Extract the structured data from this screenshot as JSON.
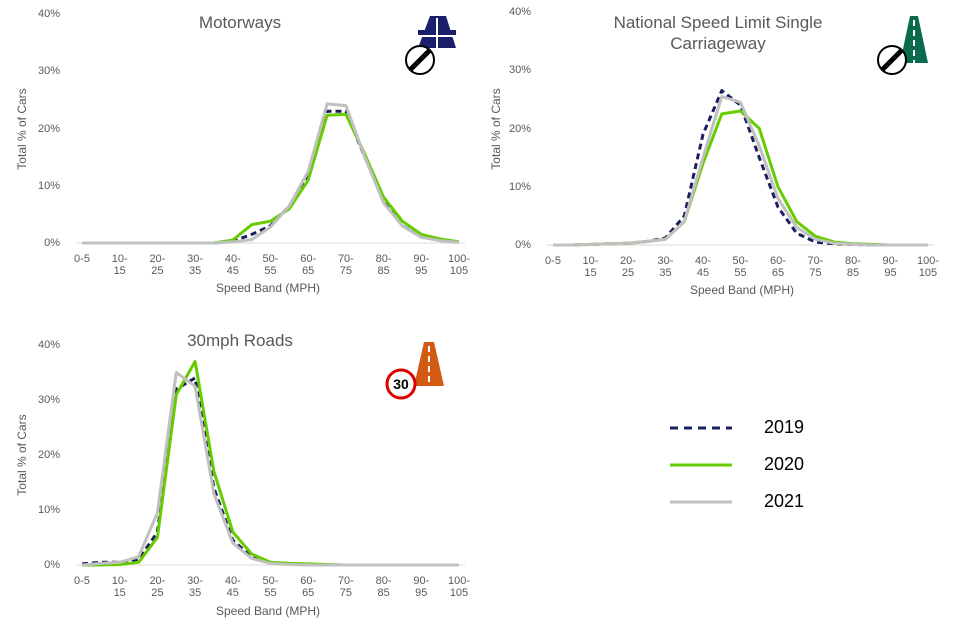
{
  "chart_data": [
    {
      "type": "line",
      "title": "Motorways",
      "y_label": "Total % of Cars",
      "x_label": "Speed Band (MPH)",
      "categories": [
        "0-5",
        null,
        "10-15",
        null,
        "20-25",
        null,
        "30-35",
        null,
        "40-45",
        null,
        "50-55",
        null,
        "60-65",
        null,
        "70-75",
        null,
        "80-85",
        null,
        "90-95",
        null,
        "100-105"
      ],
      "ylim": [
        0,
        40
      ],
      "yticks": [
        {
          "value": 0,
          "label": "0%"
        },
        {
          "value": 10,
          "label": "10%"
        },
        {
          "value": 20,
          "label": "20%"
        },
        {
          "value": 30,
          "label": "30%"
        },
        {
          "value": 40,
          "label": "40%"
        }
      ],
      "series": [
        {
          "name": "2019",
          "color": "#1a1f5e",
          "style": "dashed",
          "values": [
            0,
            0,
            0,
            0,
            0,
            0,
            0,
            0,
            0.3,
            1.5,
            3,
            6.5,
            12,
            23,
            23,
            15,
            7.5,
            3,
            1.2,
            0.5,
            0.1
          ]
        },
        {
          "name": "2020",
          "color": "#66cc00",
          "style": "solid",
          "values": [
            0,
            0,
            0,
            0,
            0,
            0,
            0,
            0,
            0.5,
            3.2,
            3.8,
            6,
            11,
            22.3,
            22.5,
            15.5,
            8,
            3.8,
            1.5,
            0.7,
            0.2
          ]
        },
        {
          "name": "2021",
          "color": "#c0c0c0",
          "style": "solid",
          "values": [
            0,
            0,
            0,
            0,
            0,
            0,
            0,
            0,
            0.2,
            0.6,
            2.8,
            6.5,
            12.5,
            24.3,
            24,
            15,
            7,
            3,
            1,
            0.4,
            0.1
          ]
        }
      ]
    },
    {
      "type": "line",
      "title": "National Speed Limit Single Carriageway",
      "y_label": "Total % of Cars",
      "x_label": "Speed Band (MPH)",
      "categories": [
        "0-5",
        null,
        "10-15",
        null,
        "20-25",
        null,
        "30-35",
        null,
        "40-45",
        null,
        "50-55",
        null,
        "60-65",
        null,
        "70-75",
        null,
        "80-85",
        null,
        "90-95",
        null,
        "100-105"
      ],
      "ylim": [
        0,
        40
      ],
      "yticks": [
        {
          "value": 0,
          "label": "0%"
        },
        {
          "value": 10,
          "label": "10%"
        },
        {
          "value": 20,
          "label": "20%"
        },
        {
          "value": 30,
          "label": "30%"
        },
        {
          "value": 40,
          "label": "40%"
        }
      ],
      "series": [
        {
          "name": "2019",
          "color": "#1a1f5e",
          "style": "dashed",
          "values": [
            0,
            0,
            0.1,
            0.2,
            0.3,
            0.6,
            1.2,
            5,
            19,
            26.5,
            24,
            15,
            6.5,
            2,
            0.5,
            0.2,
            0.1,
            0,
            0,
            0,
            0
          ]
        },
        {
          "name": "2020",
          "color": "#66cc00",
          "style": "solid",
          "values": [
            0,
            0,
            0.1,
            0.2,
            0.3,
            0.6,
            1,
            4,
            14,
            22.5,
            23,
            20,
            10,
            4,
            1.5,
            0.5,
            0.2,
            0.1,
            0,
            0,
            0
          ]
        },
        {
          "name": "2021",
          "color": "#c0c0c0",
          "style": "solid",
          "values": [
            0,
            0,
            0.1,
            0.2,
            0.3,
            0.6,
            1,
            4,
            15,
            25.5,
            24.5,
            17,
            8,
            3,
            1,
            0.3,
            0.1,
            0,
            0,
            0,
            0
          ]
        }
      ]
    },
    {
      "type": "line",
      "title": "30mph Roads",
      "icon_label": "30",
      "y_label": "Total % of Cars",
      "x_label": "Speed Band (MPH)",
      "categories": [
        "0-5",
        null,
        "10-15",
        null,
        "20-25",
        null,
        "30-35",
        null,
        "40-45",
        null,
        "50-55",
        null,
        "60-65",
        null,
        "70-75",
        null,
        "80-85",
        null,
        "90-95",
        null,
        "100-105"
      ],
      "ylim": [
        0,
        40
      ],
      "yticks": [
        {
          "value": 0,
          "label": "0%"
        },
        {
          "value": 10,
          "label": "10%"
        },
        {
          "value": 20,
          "label": "20%"
        },
        {
          "value": 30,
          "label": "30%"
        },
        {
          "value": 40,
          "label": "40%"
        }
      ],
      "series": [
        {
          "name": "2019",
          "color": "#1a1f5e",
          "style": "dashed",
          "values": [
            0.2,
            0.5,
            0.5,
            1,
            6,
            32,
            34,
            14,
            4.5,
            1.5,
            0.4,
            0.2,
            0.1,
            0,
            0,
            0,
            0,
            0,
            0,
            0,
            0
          ]
        },
        {
          "name": "2020",
          "color": "#66cc00",
          "style": "solid",
          "values": [
            0,
            0,
            0.1,
            0.5,
            5,
            31,
            37,
            17,
            6,
            2,
            0.5,
            0.3,
            0.2,
            0.1,
            0,
            0,
            0,
            0,
            0,
            0,
            0
          ]
        },
        {
          "name": "2021",
          "color": "#c0c0c0",
          "style": "solid",
          "values": [
            0,
            0.3,
            0.5,
            1.5,
            9.5,
            35,
            32.5,
            13,
            4,
            1.2,
            0.3,
            0.1,
            0,
            0,
            0,
            0,
            0,
            0,
            0,
            0,
            0
          ]
        }
      ]
    }
  ]
}
